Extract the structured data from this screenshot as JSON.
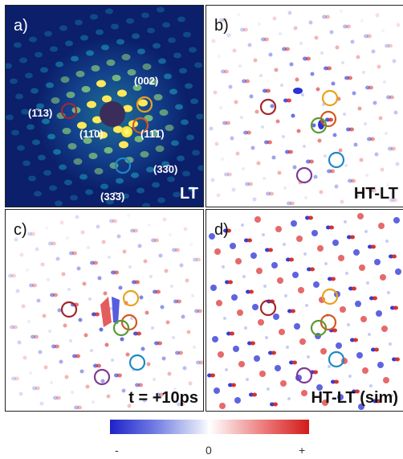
{
  "panels": {
    "a": {
      "label": "a)",
      "corner": "LT"
    },
    "b": {
      "label": "b)",
      "corner": "HT-LT"
    },
    "c": {
      "label": "c)",
      "corner": "t = +10ps"
    },
    "d": {
      "label": "d)",
      "corner": "HT-LT (sim)"
    }
  },
  "miller_indices": {
    "m002": "(002)",
    "m113": "(1̄13)",
    "m110": "(11̄0)",
    "m111": "(11̄1̄)",
    "m330": "(33̄0)",
    "m333": "(33̄3̄)"
  },
  "colorbar": {
    "minus": "-",
    "zero": "0",
    "plus": "+"
  },
  "circle_colors": {
    "yellow": "#e8a21d",
    "dark_red": "#a3252e",
    "orange": "#d2591f",
    "green": "#5b9a34",
    "blue": "#1c8ac4",
    "purple": "#7e3a96"
  }
}
